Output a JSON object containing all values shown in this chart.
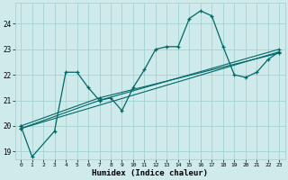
{
  "xlabel": "Humidex (Indice chaleur)",
  "xlim": [
    -0.5,
    23.5
  ],
  "ylim": [
    18.7,
    24.8
  ],
  "yticks": [
    19,
    20,
    21,
    22,
    23,
    24
  ],
  "xticks": [
    0,
    1,
    2,
    3,
    4,
    5,
    6,
    7,
    8,
    9,
    10,
    11,
    12,
    13,
    14,
    15,
    16,
    17,
    18,
    19,
    20,
    21,
    22,
    23
  ],
  "bg_color": "#ceeaea",
  "grid_color": "#9ecece",
  "line_color": "#006868",
  "wiggly": {
    "x": [
      0,
      1,
      3,
      4,
      5,
      6,
      7,
      8,
      9,
      10,
      11,
      12,
      13,
      14,
      15,
      16,
      17,
      18,
      19,
      20,
      21,
      22,
      23
    ],
    "y": [
      20.0,
      18.8,
      19.8,
      22.1,
      22.1,
      21.5,
      21.0,
      21.1,
      20.6,
      21.5,
      22.2,
      23.0,
      23.1,
      23.1,
      24.2,
      24.5,
      24.3,
      23.1,
      22.0,
      21.9,
      22.1,
      22.6,
      22.9
    ]
  },
  "straight_lines": [
    {
      "x": [
        0,
        23
      ],
      "y": [
        19.9,
        22.9
      ]
    },
    {
      "x": [
        0,
        7,
        23
      ],
      "y": [
        19.9,
        21.0,
        23.0
      ]
    },
    {
      "x": [
        0,
        7,
        23
      ],
      "y": [
        20.0,
        21.1,
        22.85
      ]
    }
  ]
}
